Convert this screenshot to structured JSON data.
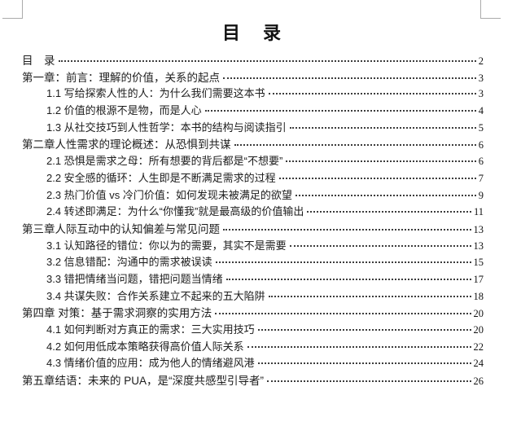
{
  "document": {
    "title": "目　录"
  },
  "toc_entries": [
    {
      "text": "目　录",
      "page": "2",
      "level": 1
    },
    {
      "text": "第一章：前言：理解的价值，关系的起点",
      "page": "3",
      "level": 1
    },
    {
      "text": "1.1 写给探索人性的人：为什么我们需要这本书",
      "page": "3",
      "level": 2
    },
    {
      "text": "1.2 价值的根源不是物，而是人心",
      "page": "4",
      "level": 2
    },
    {
      "text": "1.3 从社交技巧到人性哲学：本书的结构与阅读指引",
      "page": "5",
      "level": 2
    },
    {
      "text": "第二章人性需求的理论概述：从恐惧到共谋",
      "page": "6",
      "level": 1
    },
    {
      "text": "2.1 恐惧是需求之母：所有想要的背后都是“不想要”",
      "page": "6",
      "level": 2
    },
    {
      "text": "2.2 安全感的循环：人生即是不断满足需求的过程",
      "page": "7",
      "level": 2
    },
    {
      "text": "2.3 热门价值 vs 冷门价值：如何发现未被满足的欲望",
      "page": "9",
      "level": 2
    },
    {
      "text": "2.4 转述即满足：为什么“你懂我”就是最高级的价值输出",
      "page": "11",
      "level": 2
    },
    {
      "text": "第三章人际互动中的认知偏差与常见问题",
      "page": "13",
      "level": 1
    },
    {
      "text": "3.1 认知路径的错位：你以为的需要，其实不是需要",
      "page": "13",
      "level": 2
    },
    {
      "text": "3.2 信息错配：沟通中的需求被误读",
      "page": "15",
      "level": 2
    },
    {
      "text": "3.3 错把情绪当问题，错把问题当情绪",
      "page": "17",
      "level": 2
    },
    {
      "text": "3.4 共谋失败：合作关系建立不起来的五大陷阱",
      "page": "18",
      "level": 2
    },
    {
      "text": "第四章 对策：基于需求洞察的实用方法",
      "page": "20",
      "level": 1
    },
    {
      "text": "4.1 如何判断对方真正的需求：三大实用技巧",
      "page": "20",
      "level": 2
    },
    {
      "text": "4.2 如何用低成本策略获得高价值人际关系",
      "page": "22",
      "level": 2
    },
    {
      "text": "4.3 情绪价值的应用：成为他人的情绪避风港",
      "page": "24",
      "level": 2
    },
    {
      "text": "第五章结语：未来的 PUA，是“深度共感型引导者”",
      "page": "26",
      "level": 1
    }
  ]
}
